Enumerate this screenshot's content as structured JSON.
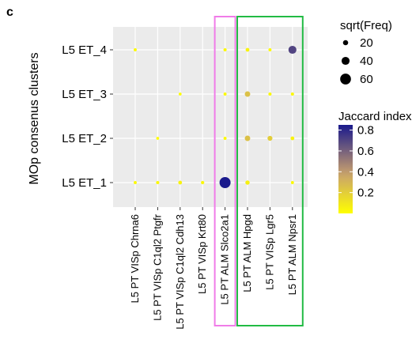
{
  "panel_label": "c",
  "chart_data": {
    "type": "scatter",
    "ylabel": "MOp consenus clusters",
    "x_categories": [
      "L5 PT VISp Chrna6",
      "L5 PT VISp C1ql2 Ptgfr",
      "L5 PT VISp C1ql2 Cdh13",
      "L5 PT VISp Krt80",
      "L5 PT ALM Slco2a1",
      "L5 PT ALM Hpgd",
      "L5 PT VISp Lgr5",
      "L5 PT ALM Npsr1"
    ],
    "y_categories": [
      "L5 ET_1",
      "L5 ET_2",
      "L5 ET_3",
      "L5 ET_4"
    ],
    "size_legend": {
      "title": "sqrt(Freq)",
      "values": [
        20,
        40,
        60
      ]
    },
    "color_legend": {
      "title": "Jaccard index",
      "ticks": [
        0.2,
        0.4,
        0.6,
        0.8
      ],
      "range": [
        0,
        0.85
      ],
      "low": "#ffff00",
      "mid": "#c8a06e",
      "high": "#1a1a8c"
    },
    "points": [
      {
        "x": "L5 PT VISp Chrna6",
        "y": "L5 ET_4",
        "freq_sqrt": 5,
        "jaccard": 0.02
      },
      {
        "x": "L5 PT ALM Slco2a1",
        "y": "L5 ET_4",
        "freq_sqrt": 6,
        "jaccard": 0.03
      },
      {
        "x": "L5 PT ALM Hpgd",
        "y": "L5 ET_4",
        "freq_sqrt": 10,
        "jaccard": 0.05
      },
      {
        "x": "L5 PT VISp Lgr5",
        "y": "L5 ET_4",
        "freq_sqrt": 5,
        "jaccard": 0.02
      },
      {
        "x": "L5 PT ALM Npsr1",
        "y": "L5 ET_4",
        "freq_sqrt": 40,
        "jaccard": 0.7
      },
      {
        "x": "L5 PT VISp C1ql2 Cdh13",
        "y": "L5 ET_3",
        "freq_sqrt": 4,
        "jaccard": 0.01
      },
      {
        "x": "L5 PT ALM Slco2a1",
        "y": "L5 ET_3",
        "freq_sqrt": 5,
        "jaccard": 0.02
      },
      {
        "x": "L5 PT ALM Hpgd",
        "y": "L5 ET_3",
        "freq_sqrt": 22,
        "jaccard": 0.25
      },
      {
        "x": "L5 PT VISp Lgr5",
        "y": "L5 ET_3",
        "freq_sqrt": 6,
        "jaccard": 0.03
      },
      {
        "x": "L5 PT ALM Npsr1",
        "y": "L5 ET_3",
        "freq_sqrt": 6,
        "jaccard": 0.03
      },
      {
        "x": "L5 PT VISp C1ql2 Ptgfr",
        "y": "L5 ET_2",
        "freq_sqrt": 4,
        "jaccard": 0.01
      },
      {
        "x": "L5 PT ALM Slco2a1",
        "y": "L5 ET_2",
        "freq_sqrt": 5,
        "jaccard": 0.02
      },
      {
        "x": "L5 PT ALM Hpgd",
        "y": "L5 ET_2",
        "freq_sqrt": 22,
        "jaccard": 0.25
      },
      {
        "x": "L5 PT VISp Lgr5",
        "y": "L5 ET_2",
        "freq_sqrt": 18,
        "jaccard": 0.2
      },
      {
        "x": "L5 PT ALM Npsr1",
        "y": "L5 ET_2",
        "freq_sqrt": 10,
        "jaccard": 0.05
      },
      {
        "x": "L5 PT VISp Chrna6",
        "y": "L5 ET_1",
        "freq_sqrt": 5,
        "jaccard": 0.02
      },
      {
        "x": "L5 PT VISp C1ql2 Ptgfr",
        "y": "L5 ET_1",
        "freq_sqrt": 6,
        "jaccard": 0.03
      },
      {
        "x": "L5 PT VISp C1ql2 Cdh13",
        "y": "L5 ET_1",
        "freq_sqrt": 10,
        "jaccard": 0.05
      },
      {
        "x": "L5 PT VISp Krt80",
        "y": "L5 ET_1",
        "freq_sqrt": 7,
        "jaccard": 0.03
      },
      {
        "x": "L5 PT ALM Slco2a1",
        "y": "L5 ET_1",
        "freq_sqrt": 62,
        "jaccard": 0.85
      },
      {
        "x": "L5 PT ALM Hpgd",
        "y": "L5 ET_1",
        "freq_sqrt": 14,
        "jaccard": 0.06
      },
      {
        "x": "L5 PT ALM Npsr1",
        "y": "L5 ET_1",
        "freq_sqrt": 5,
        "jaccard": 0.02
      }
    ],
    "highlight_boxes": [
      {
        "color": "#f07ce8",
        "categories": [
          "L5 PT ALM Slco2a1"
        ]
      },
      {
        "color": "#22bb44",
        "categories": [
          "L5 PT ALM Hpgd",
          "L5 PT VISp Lgr5",
          "L5 PT ALM Npsr1"
        ]
      }
    ],
    "grid": true,
    "legend_position": "right"
  }
}
